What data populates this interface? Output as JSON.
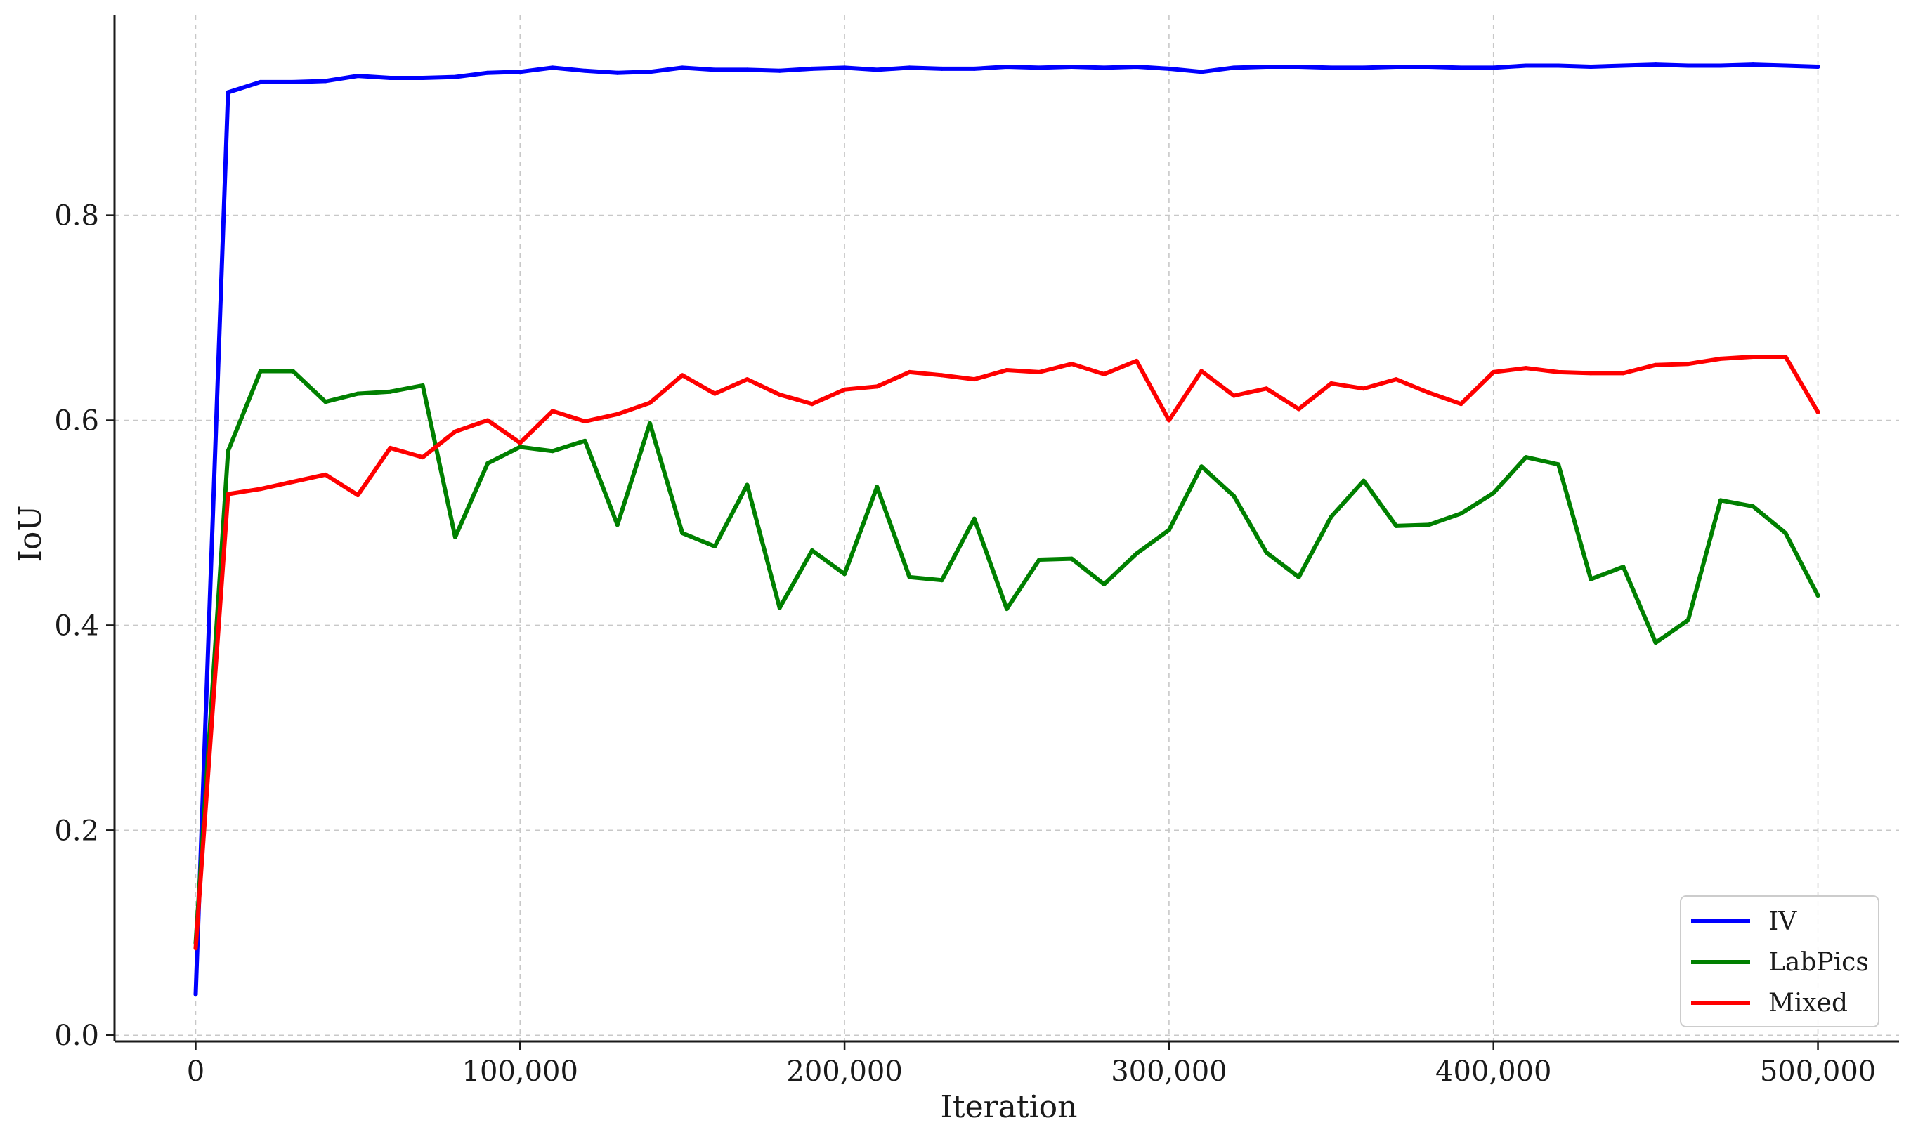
{
  "chart_data": {
    "type": "line",
    "xlabel": "Iteration",
    "ylabel": "IoU",
    "xlim": [
      -25000,
      525000
    ],
    "ylim": [
      -0.006,
      0.995
    ],
    "xticks": [
      0,
      100000,
      200000,
      300000,
      400000,
      500000
    ],
    "xtick_labels": [
      "0",
      "100,000",
      "200,000",
      "300,000",
      "400,000",
      "500,000"
    ],
    "yticks": [
      0.0,
      0.2,
      0.4,
      0.6,
      0.8
    ],
    "ytick_labels": [
      "0.0",
      "0.2",
      "0.4",
      "0.6",
      "0.8"
    ],
    "grid": true,
    "legend_position": "bottom-right",
    "x": [
      0,
      10000,
      20000,
      30000,
      40000,
      50000,
      60000,
      70000,
      80000,
      90000,
      100000,
      110000,
      120000,
      130000,
      140000,
      150000,
      160000,
      170000,
      180000,
      190000,
      200000,
      210000,
      220000,
      230000,
      240000,
      250000,
      260000,
      270000,
      280000,
      290000,
      300000,
      310000,
      320000,
      330000,
      340000,
      350000,
      360000,
      370000,
      380000,
      390000,
      400000,
      410000,
      420000,
      430000,
      440000,
      450000,
      460000,
      470000,
      480000,
      490000,
      500000
    ],
    "series": [
      {
        "name": "IV",
        "color": "#0000ff",
        "values": [
          0.04,
          0.92,
          0.93,
          0.93,
          0.931,
          0.936,
          0.934,
          0.934,
          0.935,
          0.939,
          0.94,
          0.944,
          0.941,
          0.939,
          0.94,
          0.944,
          0.942,
          0.942,
          0.941,
          0.943,
          0.944,
          0.942,
          0.944,
          0.943,
          0.943,
          0.945,
          0.944,
          0.945,
          0.944,
          0.945,
          0.943,
          0.94,
          0.944,
          0.945,
          0.945,
          0.944,
          0.944,
          0.945,
          0.945,
          0.944,
          0.944,
          0.946,
          0.946,
          0.945,
          0.946,
          0.947,
          0.946,
          0.946,
          0.947,
          0.946,
          0.945
        ]
      },
      {
        "name": "LabPics",
        "color": "#008000",
        "values": [
          0.09,
          0.57,
          0.648,
          0.648,
          0.618,
          0.626,
          0.628,
          0.634,
          0.486,
          0.558,
          0.574,
          0.57,
          0.58,
          0.498,
          0.597,
          0.49,
          0.477,
          0.537,
          0.417,
          0.473,
          0.45,
          0.535,
          0.447,
          0.444,
          0.504,
          0.416,
          0.464,
          0.465,
          0.44,
          0.47,
          0.493,
          0.555,
          0.526,
          0.471,
          0.447,
          0.506,
          0.541,
          0.497,
          0.498,
          0.509,
          0.529,
          0.564,
          0.557,
          0.445,
          0.457,
          0.383,
          0.405,
          0.522,
          0.516,
          0.49,
          0.429
        ]
      },
      {
        "name": "Mixed",
        "color": "#ff0000",
        "values": [
          0.085,
          0.528,
          0.533,
          0.54,
          0.547,
          0.527,
          0.573,
          0.564,
          0.589,
          0.6,
          0.578,
          0.609,
          0.599,
          0.606,
          0.617,
          0.644,
          0.626,
          0.64,
          0.625,
          0.616,
          0.63,
          0.633,
          0.647,
          0.644,
          0.64,
          0.649,
          0.647,
          0.655,
          0.645,
          0.658,
          0.6,
          0.648,
          0.624,
          0.631,
          0.611,
          0.636,
          0.631,
          0.64,
          0.627,
          0.616,
          0.647,
          0.651,
          0.647,
          0.646,
          0.646,
          0.654,
          0.655,
          0.66,
          0.662,
          0.662,
          0.608
        ]
      }
    ]
  }
}
